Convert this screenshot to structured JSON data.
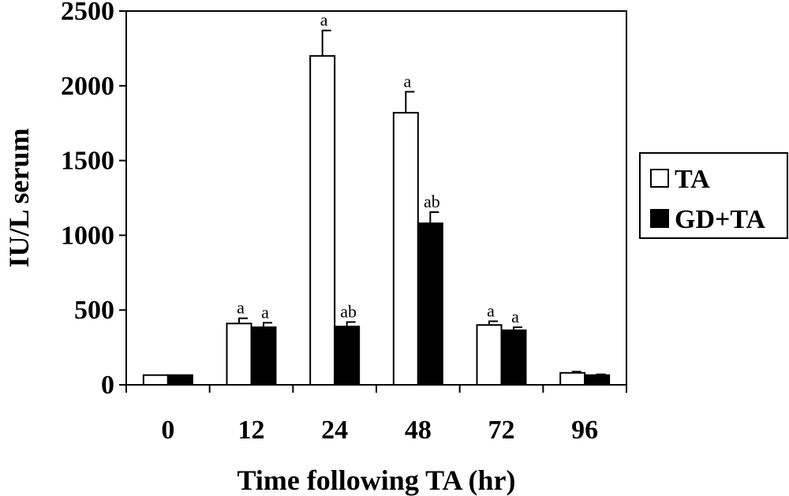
{
  "chart_data": {
    "type": "bar",
    "title": "",
    "xlabel": "Time following TA (hr)",
    "ylabel": "IU/L serum",
    "categories": [
      "0",
      "12",
      "24",
      "48",
      "72",
      "96"
    ],
    "ylim": [
      0,
      2500
    ],
    "yticks": [
      0,
      500,
      1000,
      1500,
      2000,
      2500
    ],
    "legend_position": "right",
    "series": [
      {
        "name": "TA",
        "color": "#ffffff",
        "values": [
          65,
          410,
          2200,
          1820,
          400,
          80
        ],
        "errors": [
          0,
          35,
          170,
          140,
          25,
          8
        ],
        "labels": [
          "",
          "a",
          "a",
          "a",
          "a",
          ""
        ]
      },
      {
        "name": "GD+TA",
        "color": "#000000",
        "values": [
          65,
          385,
          390,
          1080,
          365,
          65
        ],
        "errors": [
          0,
          30,
          30,
          75,
          20,
          5
        ],
        "labels": [
          "",
          "a",
          "ab",
          "ab",
          "a",
          ""
        ]
      }
    ]
  }
}
